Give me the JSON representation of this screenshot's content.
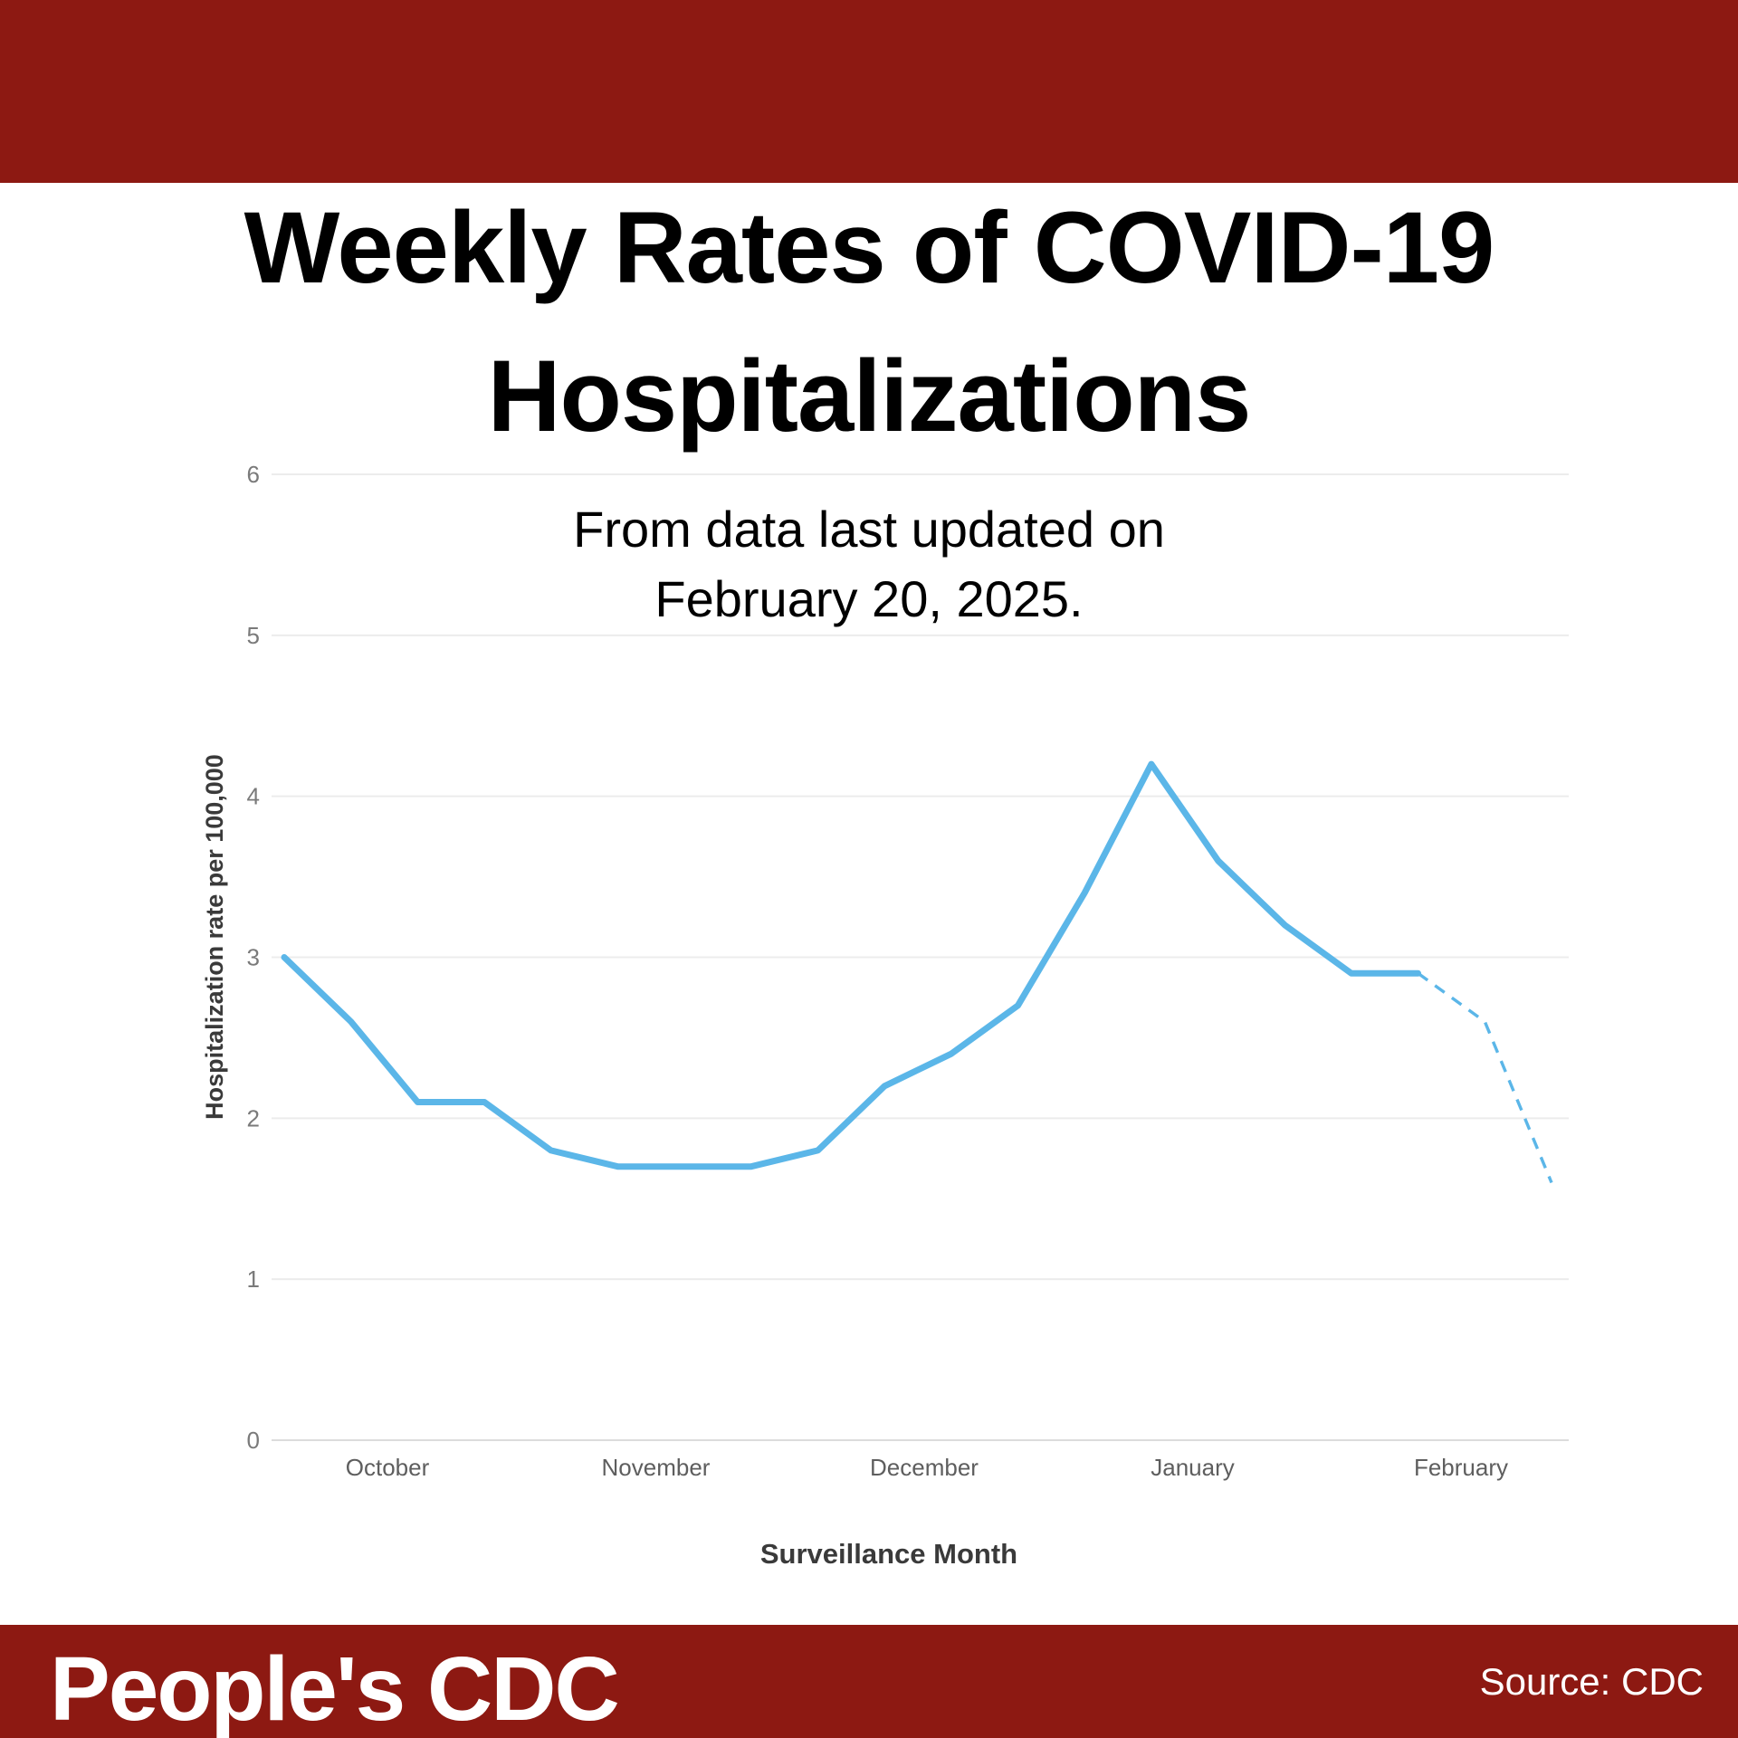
{
  "theme": {
    "band_color": "#8D1912",
    "background": "#FFFFFF",
    "title_color": "#000000",
    "gridline_color": "#ECECEC",
    "axis_line_color": "#DCDCDC",
    "tick_label_color": "#7A7A7A",
    "month_label_color": "#5E5E5E",
    "axis_title_color": "#3A3A3A"
  },
  "title": {
    "line1": "Weekly Rates of COVID-19",
    "line2": "Hospitalizations"
  },
  "subtitle": {
    "line1": "From data last updated on",
    "line2": "February 20, 2025."
  },
  "chart_data": {
    "type": "line",
    "title": "",
    "xlabel": "Surveillance Month",
    "ylabel": "Hospitalization rate per 100,000",
    "ylim": [
      0,
      6
    ],
    "yticks": [
      0,
      1,
      2,
      3,
      4,
      5,
      6
    ],
    "x_categories": [
      "October",
      "November",
      "December",
      "January",
      "February"
    ],
    "grid": "horizontal",
    "legend": "none",
    "line_color": "#5BB6E8",
    "series": [
      {
        "name": "Weekly COVID-19 hospitalization rate per 100,000",
        "x_unit": "week",
        "values": [
          3.0,
          2.6,
          2.1,
          2.1,
          1.8,
          1.7,
          1.7,
          1.7,
          1.8,
          2.2,
          2.4,
          2.7,
          3.4,
          4.2,
          3.6,
          3.2,
          2.9,
          2.9,
          2.6,
          1.6
        ],
        "dashed_from_index": 17,
        "dashed_note": "final two segments drawn dashed (preliminary data)"
      }
    ]
  },
  "footer": {
    "brand": "People's CDC",
    "source": "Source: CDC"
  }
}
